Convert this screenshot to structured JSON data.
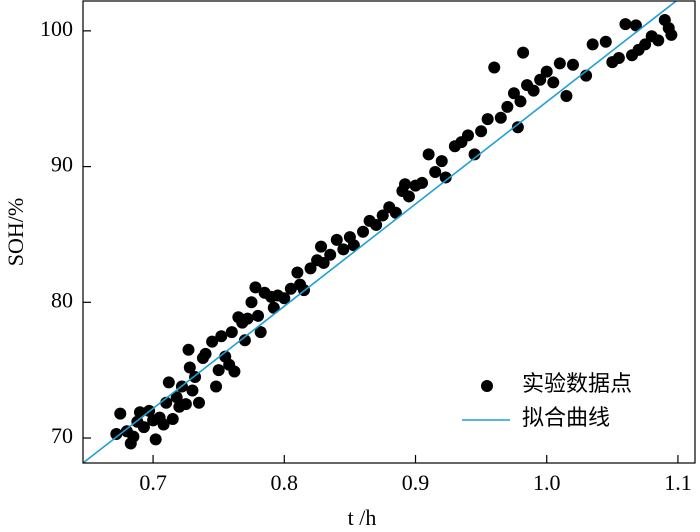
{
  "chart_data": {
    "type": "scatter",
    "xlabel": "t /h",
    "ylabel": "SOH/%",
    "xlim": [
      0.6466,
      1.113
    ],
    "ylim": [
      68.16,
      102.2
    ],
    "xticks": [
      0.7,
      0.8,
      0.9,
      {
        "value": 1,
        "label": "1.0"
      },
      1.1
    ],
    "yticks": [
      70,
      80,
      90,
      100
    ],
    "legend": "lower right",
    "series": [
      {
        "name": "实验数据点",
        "type": "scatter",
        "color": "#000000",
        "x": [
          0.672,
          0.675,
          0.68,
          0.683,
          0.685,
          0.688,
          0.69,
          0.693,
          0.697,
          0.7,
          0.702,
          0.705,
          0.708,
          0.71,
          0.712,
          0.715,
          0.718,
          0.72,
          0.722,
          0.725,
          0.727,
          0.728,
          0.73,
          0.732,
          0.735,
          0.738,
          0.74,
          0.745,
          0.748,
          0.75,
          0.752,
          0.755,
          0.758,
          0.76,
          0.762,
          0.765,
          0.768,
          0.77,
          0.772,
          0.775,
          0.778,
          0.78,
          0.782,
          0.785,
          0.79,
          0.792,
          0.795,
          0.8,
          0.805,
          0.81,
          0.812,
          0.815,
          0.82,
          0.825,
          0.828,
          0.83,
          0.835,
          0.84,
          0.845,
          0.85,
          0.853,
          0.86,
          0.865,
          0.87,
          0.875,
          0.88,
          0.885,
          0.89,
          0.892,
          0.895,
          0.9,
          0.905,
          0.91,
          0.915,
          0.92,
          0.923,
          0.93,
          0.935,
          0.94,
          0.945,
          0.95,
          0.955,
          0.96,
          0.965,
          0.97,
          0.975,
          0.978,
          0.98,
          0.982,
          0.985,
          0.99,
          0.995,
          1.0,
          1.005,
          1.01,
          1.015,
          1.02,
          1.03,
          1.035,
          1.045,
          1.05,
          1.055,
          1.06,
          1.065,
          1.068,
          1.07,
          1.075,
          1.08,
          1.085,
          1.09,
          1.093,
          1.095
        ],
        "values": [
          70.3,
          71.8,
          70.5,
          69.6,
          70.1,
          71.2,
          71.9,
          70.8,
          72.0,
          71.3,
          69.9,
          71.5,
          71.0,
          72.6,
          74.1,
          71.4,
          73.0,
          72.3,
          73.8,
          72.5,
          76.5,
          75.2,
          73.5,
          74.5,
          72.6,
          75.9,
          76.2,
          77.1,
          73.8,
          75.0,
          77.5,
          76.0,
          75.4,
          77.8,
          74.9,
          78.9,
          78.5,
          77.2,
          78.8,
          80.0,
          81.1,
          79.0,
          77.8,
          80.7,
          80.4,
          79.6,
          80.5,
          80.3,
          81.0,
          82.2,
          81.3,
          80.9,
          82.5,
          83.1,
          84.1,
          82.9,
          83.5,
          84.6,
          83.9,
          84.8,
          84.2,
          85.2,
          86.0,
          85.7,
          86.4,
          87.0,
          86.6,
          88.2,
          88.7,
          87.8,
          88.6,
          88.8,
          90.9,
          89.6,
          90.4,
          89.2,
          91.5,
          91.8,
          92.3,
          90.9,
          92.6,
          93.5,
          97.3,
          93.6,
          94.4,
          95.4,
          92.9,
          94.8,
          98.4,
          96.0,
          95.6,
          96.4,
          97.0,
          96.2,
          97.6,
          95.2,
          97.5,
          96.7,
          99.0,
          99.2,
          97.7,
          98.0,
          100.5,
          98.2,
          100.4,
          98.6,
          99.0,
          99.6,
          99.3,
          100.8,
          100.2,
          99.7
        ]
      },
      {
        "name": "拟合曲线",
        "type": "line",
        "color": "#1f9fd6",
        "x": [
          0.6466,
          1.113
        ],
        "values": [
          68.16,
          103.28
        ]
      }
    ]
  }
}
